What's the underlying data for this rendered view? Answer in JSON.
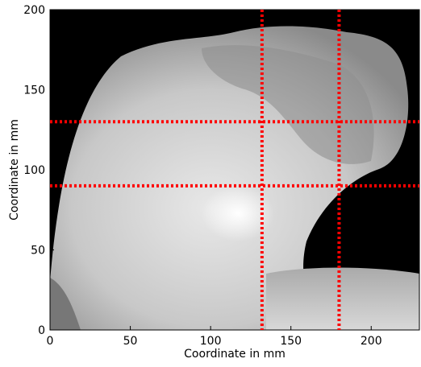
{
  "chart_data": {
    "type": "image",
    "xlabel": "Coordinate in mm",
    "ylabel": "Coordinate in mm",
    "xlim": [
      0,
      230
    ],
    "ylim": [
      0,
      200
    ],
    "xticks": [
      0,
      50,
      100,
      150,
      200
    ],
    "yticks": [
      0,
      50,
      100,
      150,
      200
    ],
    "vlines": [
      132,
      180
    ],
    "hlines": [
      90,
      130
    ],
    "line_color": "#ff0000"
  }
}
